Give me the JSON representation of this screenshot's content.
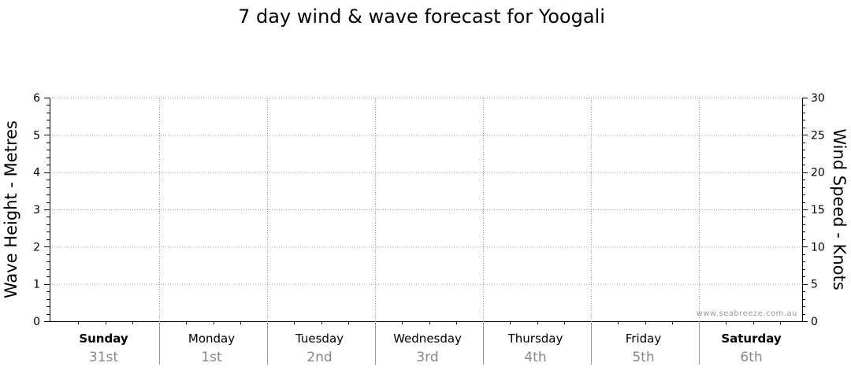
{
  "chart_data": {
    "type": "line",
    "title": "7 day wind & wave forecast for Yoogali",
    "ylabel_left": "Wave Height - Metres",
    "ylabel_right": "Wind Speed - Knots",
    "ylim_left": [
      0,
      6
    ],
    "ylim_right": [
      0,
      30
    ],
    "left_ticks": [
      "0",
      "1",
      "2",
      "3",
      "4",
      "5",
      "6"
    ],
    "right_ticks": [
      "0",
      "5",
      "10",
      "15",
      "20",
      "25",
      "30"
    ],
    "grid": true,
    "categories": [
      {
        "day": "Sunday",
        "date": "31st",
        "bold": true
      },
      {
        "day": "Monday",
        "date": "1st",
        "bold": false
      },
      {
        "day": "Tuesday",
        "date": "2nd",
        "bold": false
      },
      {
        "day": "Wednesday",
        "date": "3rd",
        "bold": false
      },
      {
        "day": "Thursday",
        "date": "4th",
        "bold": false
      },
      {
        "day": "Friday",
        "date": "5th",
        "bold": false
      },
      {
        "day": "Saturday",
        "date": "6th",
        "bold": true
      }
    ],
    "series": [],
    "watermark": "www.seabreeze.com.au"
  }
}
